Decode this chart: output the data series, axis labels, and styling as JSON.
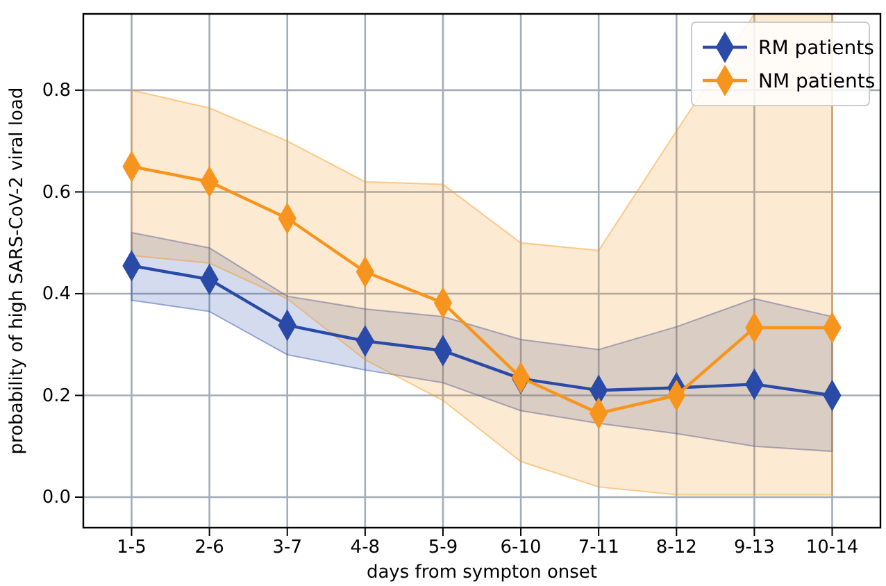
{
  "chart_data": {
    "type": "line",
    "xlabel": "days from sympton onset",
    "ylabel": "probability of high SARS-CoV-2 viral load",
    "categories": [
      "1-5",
      "2-6",
      "3-7",
      "4-8",
      "5-9",
      "6-10",
      "7-11",
      "8-12",
      "9-13",
      "10-14"
    ],
    "series": [
      {
        "name": "RM patients",
        "color": "#2a4aa8",
        "values": [
          0.455,
          0.428,
          0.338,
          0.307,
          0.288,
          0.233,
          0.21,
          0.215,
          0.222,
          0.2
        ],
        "lower": [
          0.387,
          0.365,
          0.28,
          0.25,
          0.225,
          0.17,
          0.145,
          0.125,
          0.1,
          0.09
        ],
        "upper": [
          0.52,
          0.49,
          0.395,
          0.37,
          0.355,
          0.31,
          0.29,
          0.335,
          0.39,
          0.355
        ]
      },
      {
        "name": "NM patients",
        "color": "#f7941d",
        "values": [
          0.65,
          0.62,
          0.548,
          0.443,
          0.382,
          0.235,
          0.165,
          0.2,
          0.333,
          0.333
        ],
        "lower": [
          0.475,
          0.46,
          0.39,
          0.27,
          0.19,
          0.07,
          0.02,
          0.005,
          0.005,
          0.005
        ],
        "upper": [
          0.8,
          0.765,
          0.7,
          0.62,
          0.615,
          0.5,
          0.485,
          0.72,
          0.95,
          0.95
        ]
      }
    ],
    "ylim": [
      -0.06,
      0.95
    ],
    "yticks": [
      {
        "value": 0,
        "label": "0.0"
      },
      0.2,
      0.4,
      0.6,
      0.8
    ],
    "grid": true,
    "legend": "top right",
    "marker": "diamond",
    "line_style": "solid"
  }
}
